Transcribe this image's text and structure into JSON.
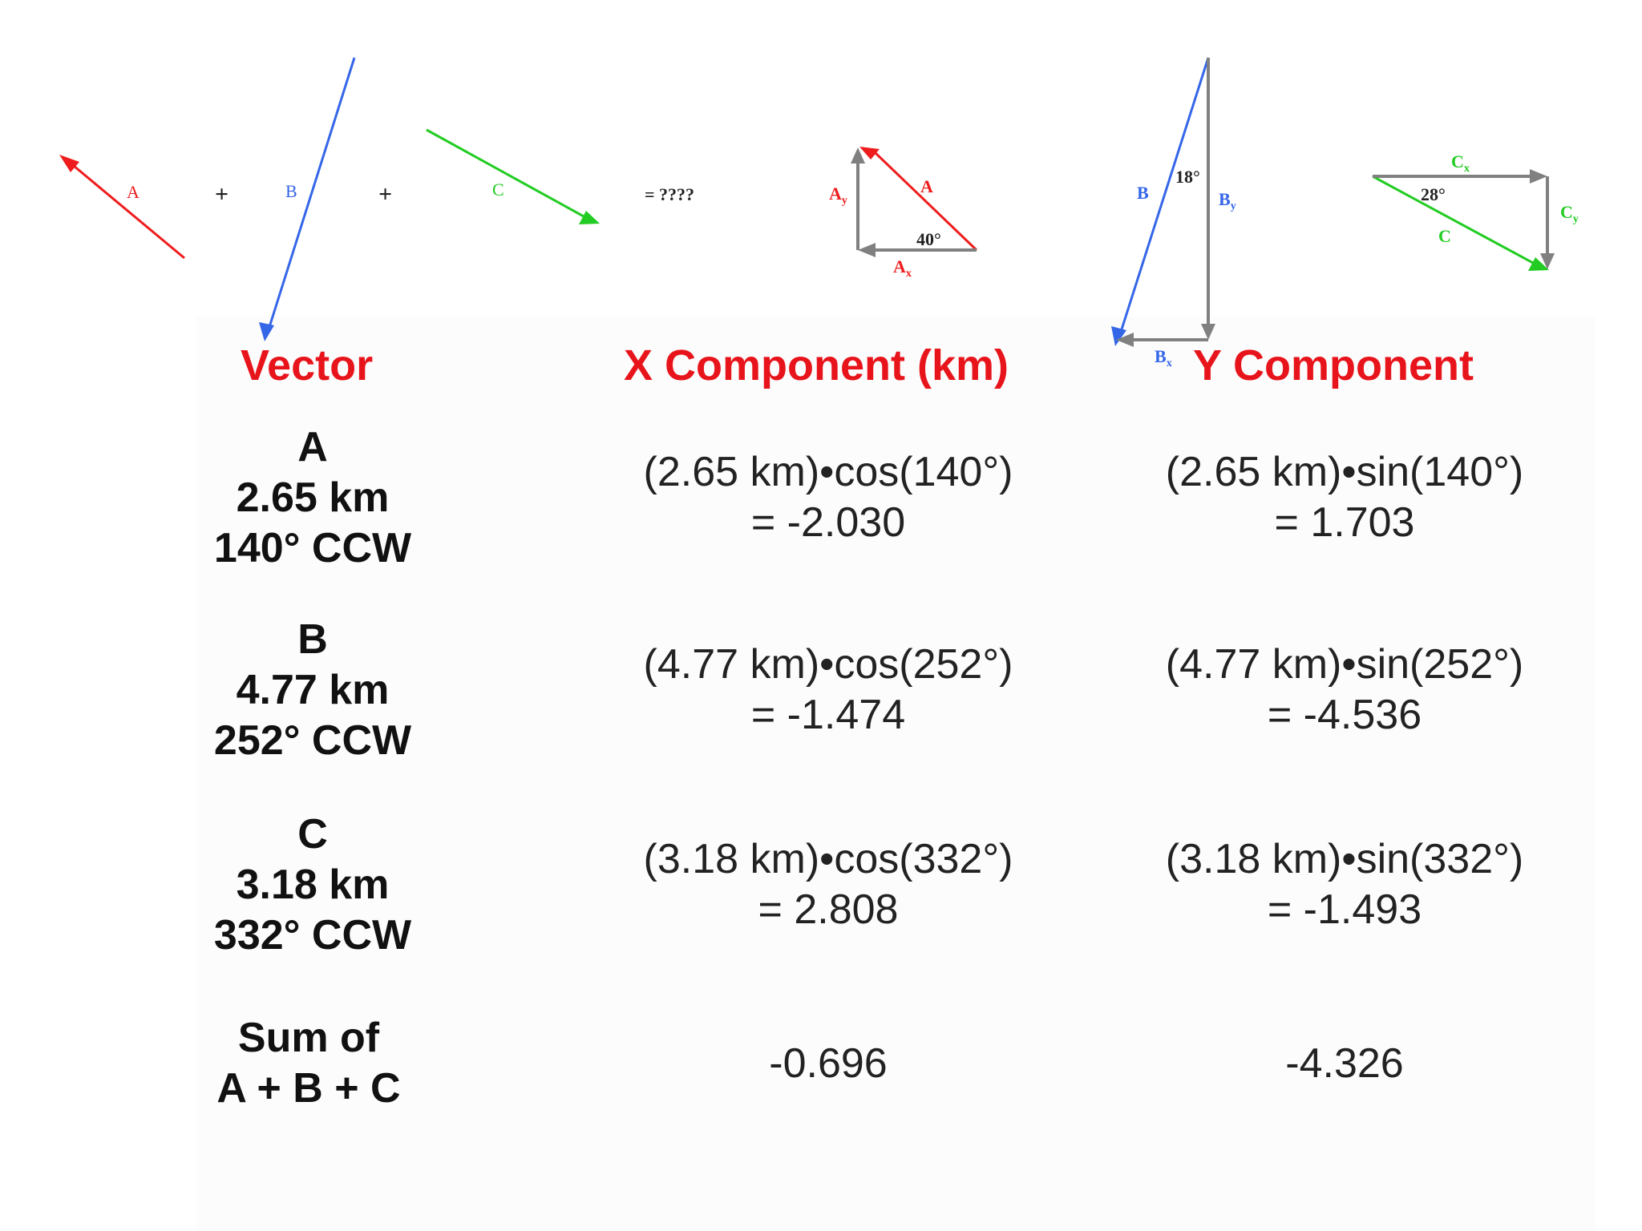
{
  "diagram": {
    "sum_labels": [
      "A",
      "B",
      "C"
    ],
    "plus_sign": "+",
    "equals_label": "= ????",
    "triangle_labels": {
      "A": "A",
      "Ay": "A",
      "Ay_sub": "y",
      "Ax": "A",
      "Ax_sub": "x",
      "A_angle": "40°",
      "B": "B",
      "By": "B",
      "By_sub": "y",
      "Bx": "B",
      "Bx_sub": "x",
      "B_angle": "18°",
      "C": "C",
      "Cx": "C",
      "Cx_sub": "x",
      "Cy": "C",
      "Cy_sub": "y",
      "C_angle": "28°"
    },
    "colors": {
      "A": "#ee1c1c",
      "B": "#3466e8",
      "C": "#22cc22",
      "component": "#808080",
      "header": "#e8141b"
    }
  },
  "table": {
    "headers": {
      "vector": "Vector",
      "x": "X Component (km)",
      "y": "Y Component"
    },
    "rows": [
      {
        "name": "A",
        "magnitude": "2.65 km",
        "angle": "140° CCW",
        "x_line1": "(2.65 km)•cos(140°)",
        "x_line2": "= -2.030",
        "y_line1": "(2.65 km)•sin(140°)",
        "y_line2": "= 1.703"
      },
      {
        "name": "B",
        "magnitude": "4.77 km",
        "angle": "252° CCW",
        "x_line1": "(4.77 km)•cos(252°)",
        "x_line2": "= -1.474",
        "y_line1": "(4.77 km)•sin(252°)",
        "y_line2": "= -4.536"
      },
      {
        "name": "C",
        "magnitude": "3.18 km",
        "angle": "332° CCW",
        "x_line1": "(3.18 km)•cos(332°)",
        "x_line2": "= 2.808",
        "y_line1": "(3.18 km)•sin(332°)",
        "y_line2": "= -1.493"
      }
    ],
    "sum": {
      "label_line1": "Sum of",
      "label_line2": "A + B + C",
      "x": "-0.696",
      "y": "-4.326"
    }
  }
}
